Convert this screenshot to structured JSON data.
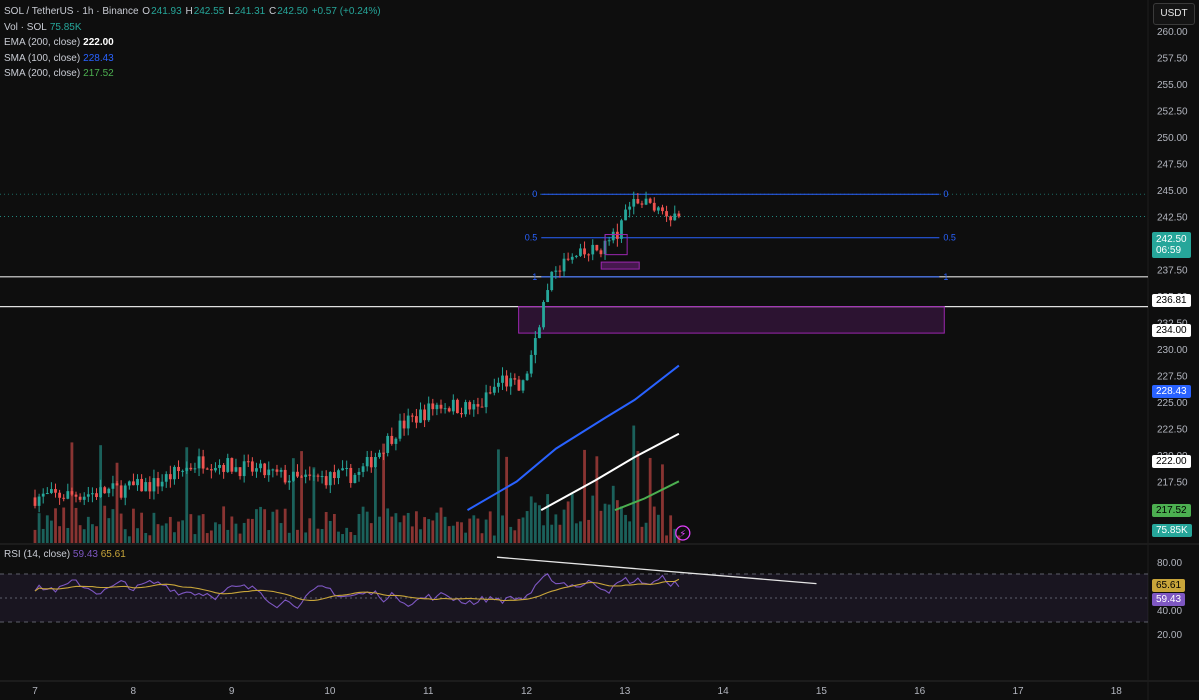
{
  "header": {
    "symbol": "SOL / TetherUS · 1h · Binance",
    "o_label": "O",
    "o": "241.93",
    "h_label": "H",
    "h": "242.55",
    "l_label": "L",
    "l": "241.31",
    "c_label": "C",
    "c": "242.50",
    "change": "+0.57 (+0.24%)"
  },
  "indicators": [
    {
      "label": "Vol · SOL",
      "value": "75.85K",
      "color": "#26a69a"
    },
    {
      "label": "EMA (200, close)",
      "value": "222.00",
      "color": "#ffffff"
    },
    {
      "label": "SMA (100, close)",
      "value": "228.43",
      "color": "#2962ff"
    },
    {
      "label": "SMA (200, close)",
      "value": "217.52",
      "color": "#4caf50"
    }
  ],
  "rsi_legend": {
    "label": "RSI (14, close)",
    "v1": "59.43",
    "v2": "65.61"
  },
  "currency_button": "USDT",
  "price_tags": {
    "current": "242.50",
    "countdown": "06:59",
    "level1": "236.81",
    "level2": "234.00",
    "sma100": "228.43",
    "ema200": "222.00",
    "sma200": "217.52",
    "vol": "75.85K",
    "rsi_ma": "65.61",
    "rsi": "59.43"
  },
  "fib_labels": {
    "zero": "0",
    "half": "0.5",
    "one": "1"
  },
  "colors": {
    "background": "#0e0e0e",
    "up": "#26a69a",
    "down": "#ef5350",
    "sma100": "#2962ff",
    "ema200": "#ffffff",
    "sma200": "#4caf50",
    "rsi": "#7e57c2",
    "rsi_ma": "#c8a53a",
    "fib": "#2962ff",
    "zone": "#9c27b0"
  },
  "chart_data": {
    "type": "candlestick",
    "x_axis": {
      "ticks": [
        "7",
        "8",
        "9",
        "10",
        "11",
        "12",
        "13",
        "14",
        "15",
        "16",
        "17",
        "18"
      ],
      "label": ""
    },
    "price_axis": {
      "ticks": [
        "260.00",
        "257.50",
        "255.00",
        "252.50",
        "250.00",
        "247.50",
        "245.00",
        "242.50",
        "240.00",
        "237.50",
        "235.00",
        "232.50",
        "230.00",
        "227.50",
        "225.00",
        "222.50",
        "220.00",
        "217.50",
        "215.00"
      ],
      "range": [
        215,
        262
      ]
    },
    "rsi_axis": {
      "ticks": [
        "80.00",
        "40.00",
        "20.00"
      ],
      "range": [
        14,
        90
      ],
      "bands": [
        70,
        50,
        30
      ]
    },
    "horizontal_levels": [
      236.81,
      234.0
    ],
    "fib_levels": {
      "p0": 244.6,
      "p05": 240.5,
      "p1": 236.8
    },
    "demand_zone": {
      "low": 231.5,
      "high": 234.0,
      "from_day": 11.92,
      "to_day": 16.25
    },
    "ema_sma_last": {
      "sma100": 228.43,
      "ema200": 222.0,
      "sma200": 217.52
    },
    "last": {
      "open": 241.93,
      "high": 242.55,
      "low": 241.31,
      "close": 242.5,
      "volume": "75.85K",
      "rsi": 59.43,
      "rsi_ma": 65.61
    },
    "grid": false
  }
}
